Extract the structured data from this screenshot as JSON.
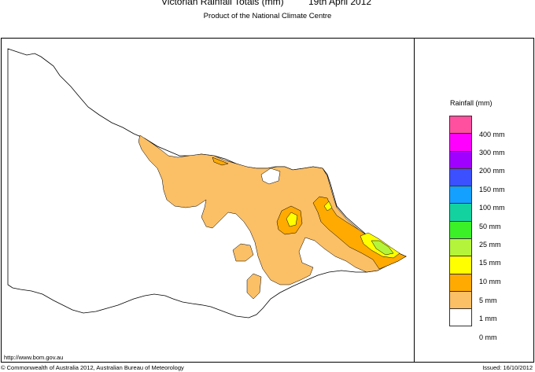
{
  "header": {
    "title": "Victorian Rainfall Totals (mm)",
    "date": "19th April 2012",
    "subtitle": "Product of the National Climate Centre"
  },
  "legend": {
    "title": "Rainfall (mm)",
    "items": [
      {
        "label": "400 mm",
        "color": "#ff50a0"
      },
      {
        "label": "300 mm",
        "color": "#ff00ff"
      },
      {
        "label": "200 mm",
        "color": "#a000ff"
      },
      {
        "label": "150 mm",
        "color": "#3c50ff"
      },
      {
        "label": "100 mm",
        "color": "#14a0ff"
      },
      {
        "label": "50 mm",
        "color": "#14d2a0"
      },
      {
        "label": "25 mm",
        "color": "#3cf028"
      },
      {
        "label": "15 mm",
        "color": "#b4f53c"
      },
      {
        "label": "10 mm",
        "color": "#ffff00"
      },
      {
        "label": "5 mm",
        "color": "#ffaa00"
      },
      {
        "label": "1 mm",
        "color": "#fbbf66"
      },
      {
        "label": "0 mm",
        "color": "#ffffff"
      }
    ]
  },
  "footer": {
    "url": "http://www.bom.gov.au",
    "copyright": "© Commonwealth of Australia 2012, Australian Bureau of Meteorology",
    "issued": "Issued: 16/10/2012"
  }
}
